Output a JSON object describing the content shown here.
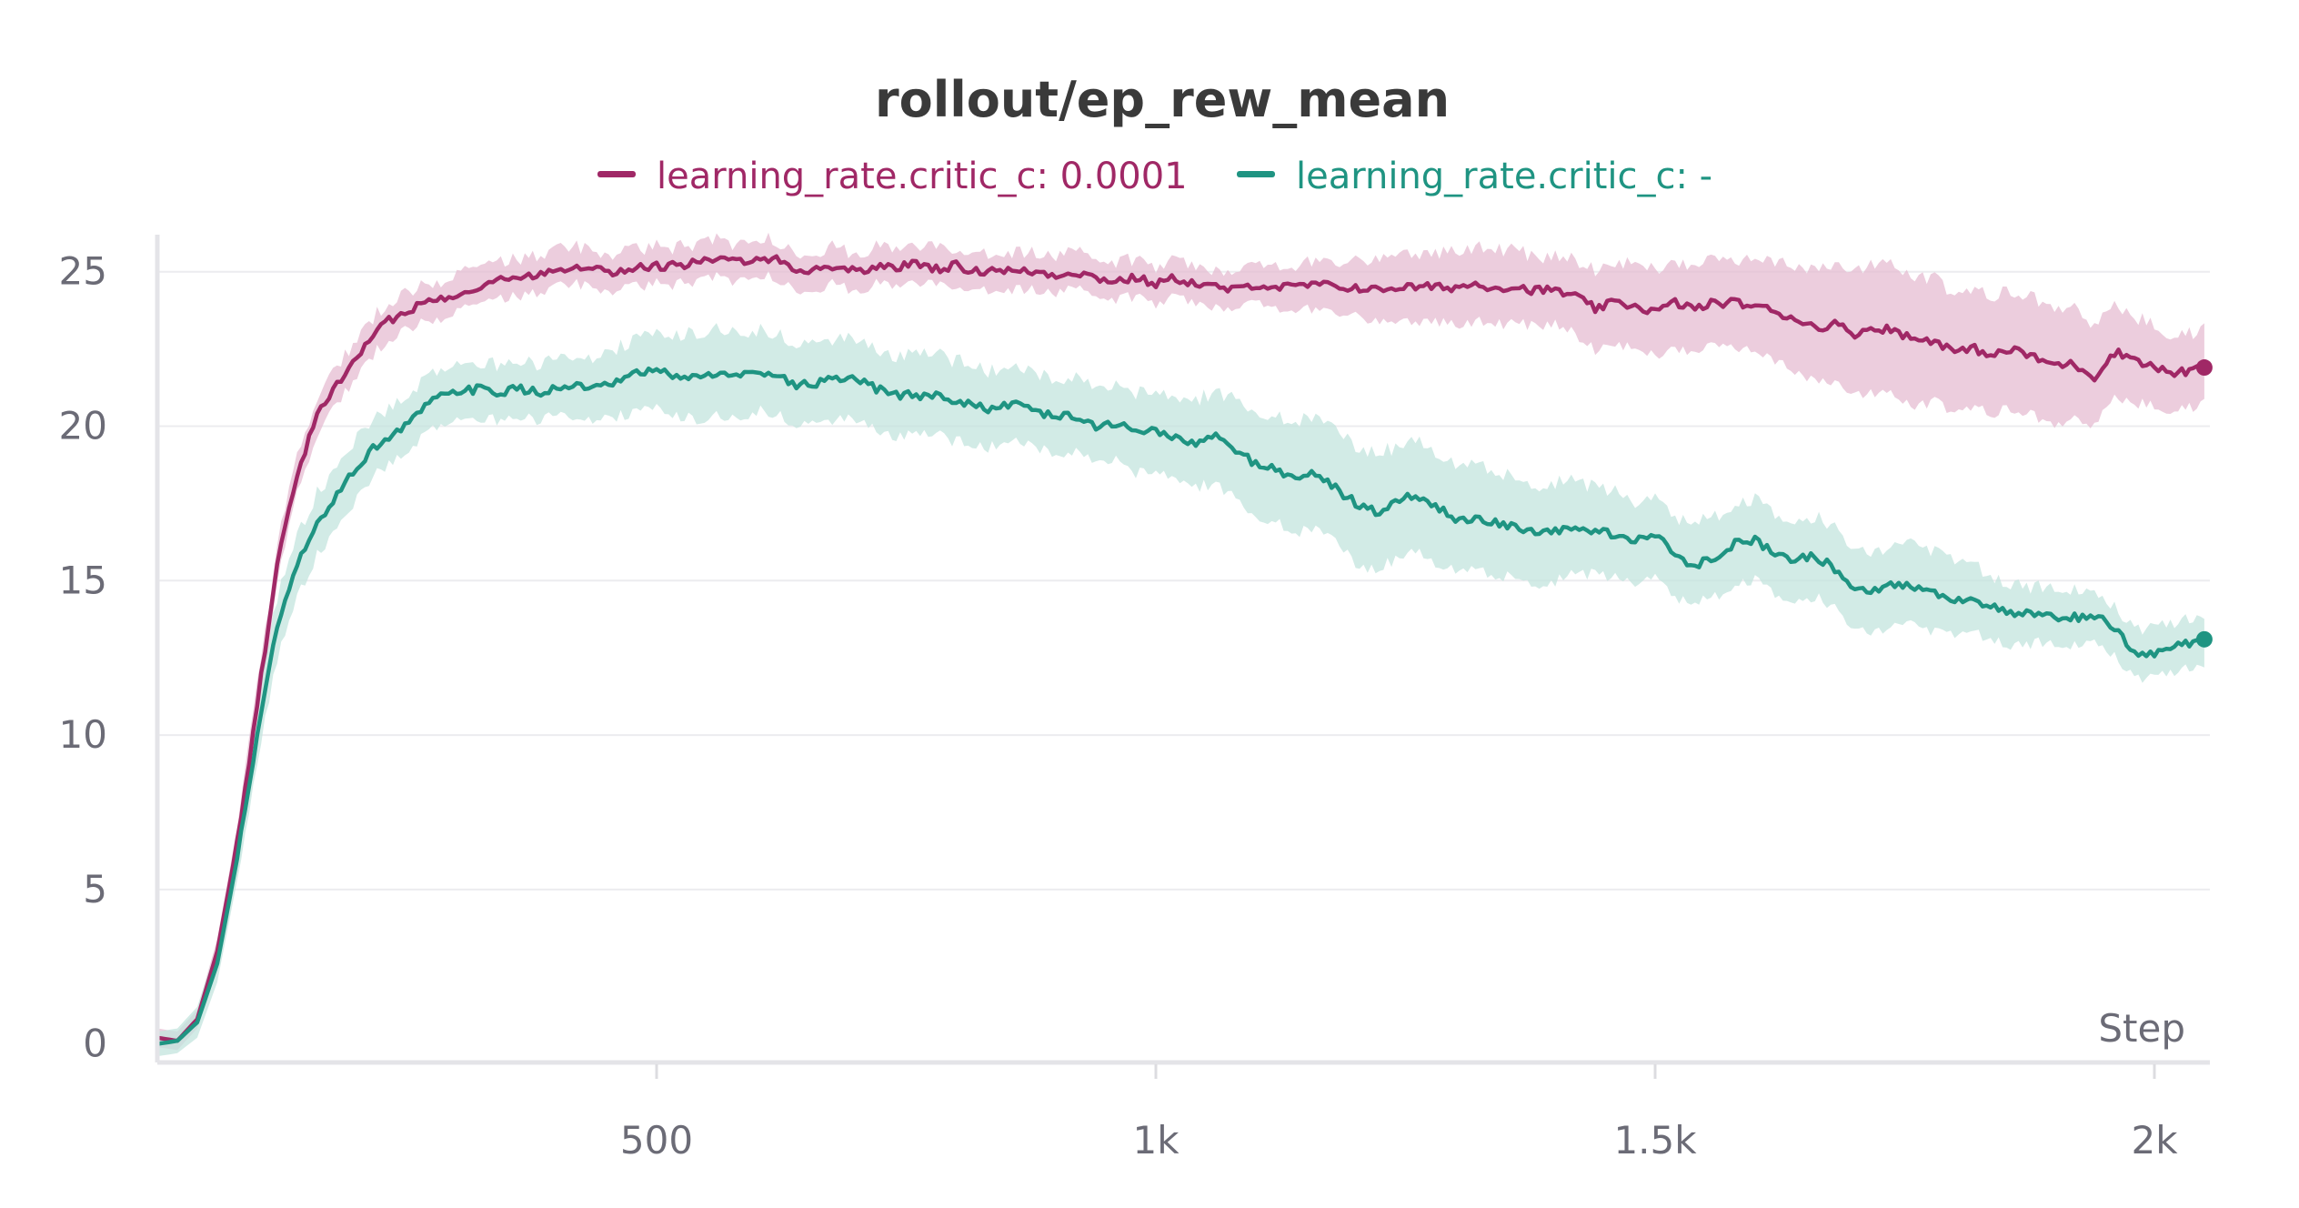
{
  "chart_data": {
    "type": "line",
    "title": "rollout/ep_rew_mean",
    "xlabel": "Step",
    "ylabel": "",
    "xlim": [
      0,
      2050
    ],
    "ylim": [
      -0.6,
      26.2
    ],
    "grid": true,
    "legend_position": "top-center",
    "x_ticks": [
      {
        "value": 500,
        "label": "500"
      },
      {
        "value": 1000,
        "label": "1k"
      },
      {
        "value": 1500,
        "label": "1.5k"
      },
      {
        "value": 2000,
        "label": "2k"
      }
    ],
    "y_ticks": [
      {
        "value": 0,
        "label": "0"
      },
      {
        "value": 5,
        "label": "5"
      },
      {
        "value": 10,
        "label": "10"
      },
      {
        "value": 15,
        "label": "15"
      },
      {
        "value": 20,
        "label": "20"
      },
      {
        "value": 25,
        "label": "25"
      }
    ],
    "series": [
      {
        "name": "learning_rate.critic_c: 0.0001",
        "color": "#a02866",
        "band_color": "#e6bcd2",
        "x": [
          0,
          20,
          40,
          60,
          80,
          100,
          120,
          140,
          160,
          180,
          200,
          220,
          240,
          260,
          280,
          300,
          320,
          340,
          360,
          380,
          400,
          420,
          440,
          460,
          480,
          500,
          520,
          540,
          560,
          580,
          600,
          620,
          640,
          660,
          680,
          700,
          720,
          740,
          760,
          780,
          800,
          820,
          840,
          860,
          880,
          900,
          920,
          940,
          960,
          980,
          1000,
          1020,
          1040,
          1060,
          1080,
          1100,
          1120,
          1140,
          1160,
          1180,
          1200,
          1220,
          1240,
          1260,
          1280,
          1300,
          1320,
          1340,
          1360,
          1380,
          1400,
          1420,
          1440,
          1460,
          1480,
          1500,
          1520,
          1540,
          1560,
          1580,
          1600,
          1620,
          1640,
          1660,
          1680,
          1700,
          1720,
          1740,
          1760,
          1780,
          1800,
          1820,
          1840,
          1860,
          1880,
          1900,
          1920,
          1940,
          1960,
          1980,
          2000,
          2020,
          2050
        ],
        "y": [
          0.2,
          0.1,
          0.8,
          3.0,
          6.5,
          11.0,
          15.5,
          18.5,
          20.3,
          21.4,
          22.2,
          23.1,
          23.6,
          23.9,
          24.1,
          24.3,
          24.5,
          24.7,
          24.8,
          24.9,
          25.1,
          25.2,
          25.1,
          25.0,
          25.1,
          25.2,
          25.2,
          25.3,
          25.4,
          25.3,
          25.5,
          25.4,
          25.0,
          25.1,
          25.2,
          25.0,
          25.2,
          25.1,
          25.3,
          25.1,
          25.2,
          25.0,
          25.1,
          25.0,
          25.0,
          24.9,
          25.0,
          24.8,
          24.7,
          24.8,
          24.6,
          24.8,
          24.6,
          24.5,
          24.4,
          24.6,
          24.5,
          24.5,
          24.6,
          24.5,
          24.5,
          24.4,
          24.5,
          24.5,
          24.5,
          24.5,
          24.6,
          24.5,
          24.5,
          24.4,
          24.4,
          24.2,
          23.8,
          24.0,
          23.9,
          23.7,
          24.0,
          23.8,
          24.0,
          24.0,
          23.9,
          23.7,
          23.5,
          23.2,
          23.3,
          23.0,
          23.2,
          23.1,
          22.8,
          22.8,
          22.4,
          22.5,
          22.3,
          22.5,
          22.2,
          22.0,
          22.0,
          21.6,
          22.4,
          22.2,
          21.9,
          21.7,
          21.9
        ],
        "band_halfwidth": [
          0.3,
          0.3,
          0.3,
          0.4,
          0.5,
          0.6,
          0.6,
          0.6,
          0.6,
          0.6,
          0.6,
          0.6,
          0.6,
          0.6,
          0.6,
          0.6,
          0.6,
          0.6,
          0.6,
          0.6,
          0.6,
          0.6,
          0.6,
          0.6,
          0.6,
          0.6,
          0.6,
          0.6,
          0.6,
          0.6,
          0.6,
          0.6,
          0.6,
          0.6,
          0.6,
          0.6,
          0.6,
          0.6,
          0.6,
          0.6,
          0.6,
          0.6,
          0.6,
          0.6,
          0.6,
          0.6,
          0.6,
          0.6,
          0.6,
          0.6,
          0.6,
          0.6,
          0.6,
          0.6,
          0.6,
          0.6,
          0.7,
          0.7,
          0.8,
          0.8,
          0.9,
          1.0,
          1.1,
          1.1,
          1.1,
          1.2,
          1.2,
          1.2,
          1.2,
          1.1,
          1.1,
          1.2,
          1.3,
          1.3,
          1.4,
          1.4,
          1.4,
          1.4,
          1.4,
          1.4,
          1.5,
          1.6,
          1.7,
          1.8,
          1.9,
          2.0,
          2.1,
          2.1,
          2.1,
          2.0,
          1.9,
          1.9,
          1.9,
          1.9,
          1.9,
          1.9,
          1.8,
          1.6,
          1.5,
          1.4,
          1.3,
          1.2,
          1.2
        ]
      },
      {
        "name": "learning_rate.critic_c: -",
        "color": "#1f9482",
        "band_color": "#c3e4dd",
        "x": [
          0,
          20,
          40,
          60,
          80,
          100,
          120,
          140,
          160,
          180,
          200,
          220,
          240,
          260,
          280,
          300,
          320,
          340,
          360,
          380,
          400,
          420,
          440,
          460,
          480,
          500,
          520,
          540,
          560,
          580,
          600,
          620,
          640,
          660,
          680,
          700,
          720,
          740,
          760,
          780,
          800,
          820,
          840,
          860,
          880,
          900,
          920,
          940,
          960,
          980,
          1000,
          1020,
          1040,
          1060,
          1080,
          1100,
          1120,
          1140,
          1160,
          1180,
          1200,
          1220,
          1240,
          1260,
          1280,
          1300,
          1320,
          1340,
          1360,
          1380,
          1400,
          1420,
          1440,
          1460,
          1480,
          1500,
          1520,
          1540,
          1560,
          1580,
          1600,
          1620,
          1640,
          1660,
          1680,
          1700,
          1720,
          1740,
          1760,
          1780,
          1800,
          1820,
          1840,
          1860,
          1880,
          1900,
          1920,
          1940,
          1960,
          1980,
          2000,
          2020,
          2050
        ],
        "y": [
          0.0,
          0.1,
          0.7,
          2.6,
          6.0,
          10.0,
          13.5,
          15.5,
          16.8,
          17.8,
          18.7,
          19.4,
          19.8,
          20.4,
          20.9,
          21.1,
          21.2,
          21.1,
          21.2,
          21.1,
          21.2,
          21.3,
          21.2,
          21.4,
          21.7,
          21.8,
          21.6,
          21.6,
          21.7,
          21.6,
          21.8,
          21.7,
          21.3,
          21.4,
          21.5,
          21.5,
          21.2,
          21.0,
          21.0,
          21.0,
          20.8,
          20.7,
          20.5,
          20.8,
          20.5,
          20.3,
          20.3,
          20.0,
          20.1,
          19.8,
          19.9,
          19.6,
          19.4,
          19.7,
          19.2,
          18.8,
          18.6,
          18.3,
          18.5,
          18.0,
          17.5,
          17.2,
          17.5,
          17.8,
          17.4,
          17.0,
          17.0,
          16.9,
          16.7,
          16.5,
          16.6,
          16.7,
          16.6,
          16.5,
          16.3,
          16.5,
          15.8,
          15.5,
          15.8,
          16.2,
          16.3,
          15.9,
          15.7,
          15.8,
          15.4,
          14.8,
          14.7,
          14.9,
          14.8,
          14.6,
          14.4,
          14.4,
          14.1,
          13.9,
          13.9,
          13.8,
          13.8,
          13.9,
          13.4,
          12.7,
          12.6,
          12.9,
          13.1
        ],
        "band_halfwidth": [
          0.4,
          0.4,
          0.5,
          0.6,
          0.7,
          0.9,
          1.0,
          1.0,
          1.0,
          1.0,
          1.0,
          0.9,
          0.9,
          0.9,
          0.9,
          0.9,
          0.9,
          0.9,
          0.9,
          0.9,
          0.9,
          1.0,
          1.0,
          1.1,
          1.2,
          1.2,
          1.3,
          1.4,
          1.4,
          1.4,
          1.3,
          1.3,
          1.3,
          1.3,
          1.3,
          1.3,
          1.3,
          1.3,
          1.3,
          1.3,
          1.3,
          1.3,
          1.2,
          1.2,
          1.2,
          1.2,
          1.2,
          1.2,
          1.2,
          1.3,
          1.3,
          1.3,
          1.4,
          1.5,
          1.6,
          1.7,
          1.7,
          1.8,
          1.8,
          1.8,
          1.9,
          1.9,
          1.8,
          1.8,
          1.8,
          1.7,
          1.7,
          1.7,
          1.6,
          1.6,
          1.6,
          1.5,
          1.4,
          1.4,
          1.3,
          1.3,
          1.3,
          1.3,
          1.3,
          1.3,
          1.3,
          1.3,
          1.3,
          1.3,
          1.3,
          1.3,
          1.3,
          1.3,
          1.3,
          1.3,
          1.2,
          1.1,
          1.0,
          1.0,
          0.9,
          0.9,
          0.9,
          0.8,
          0.8,
          0.8,
          0.8,
          0.8,
          0.8
        ]
      }
    ]
  }
}
